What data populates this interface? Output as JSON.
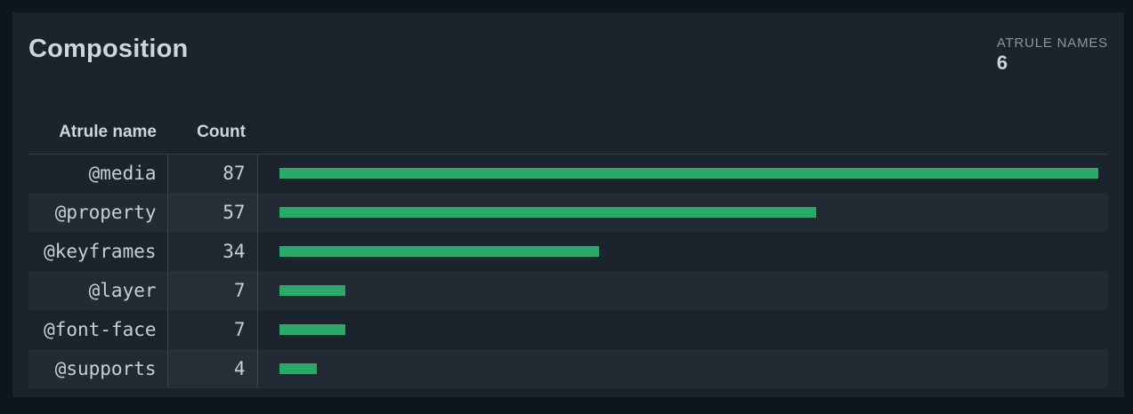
{
  "header": {
    "title": "Composition",
    "stat_label": "ATRULE NAMES",
    "stat_value": "6"
  },
  "chart_data": {
    "type": "bar",
    "orientation": "horizontal",
    "title": "Composition",
    "columns": [
      "Atrule name",
      "Count"
    ],
    "categories": [
      "@media",
      "@property",
      "@keyframes",
      "@layer",
      "@font-face",
      "@supports"
    ],
    "values": [
      87,
      57,
      34,
      7,
      7,
      4
    ],
    "max_value": 87,
    "total_atrule_names": 6,
    "bar_color": "#2aa968",
    "colors": {
      "page_background": "#0f151c",
      "card_background": "#1b242d",
      "row_stripe": "#212b35",
      "divider": "#3a444e",
      "text_primary": "#ced5dc",
      "text_muted": "#8b959e"
    },
    "legend_position": "none",
    "grid": false
  }
}
